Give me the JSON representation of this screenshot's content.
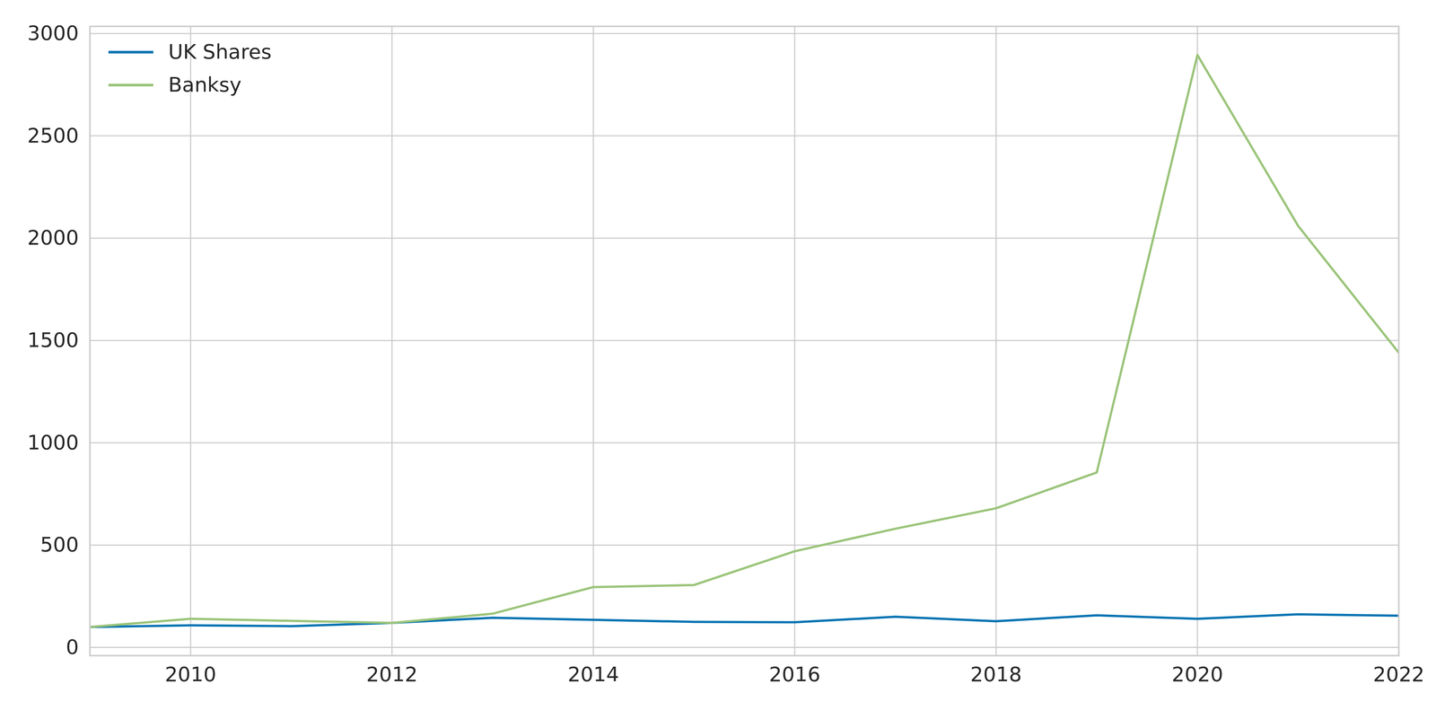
{
  "chart_data": {
    "type": "line",
    "x": [
      2009,
      2010,
      2011,
      2012,
      2013,
      2014,
      2015,
      2016,
      2017,
      2018,
      2019,
      2020,
      2021,
      2022
    ],
    "series": [
      {
        "name": "UK Shares",
        "color": "#0173b2",
        "values": [
          100,
          108,
          104,
          120,
          145,
          135,
          125,
          123,
          150,
          128,
          157,
          140,
          162,
          155
        ]
      },
      {
        "name": "Banksy",
        "color": "#9bc47a",
        "values": [
          100,
          140,
          130,
          120,
          165,
          295,
          305,
          470,
          580,
          680,
          855,
          2895,
          2060,
          1440
        ]
      }
    ],
    "xlim": [
      2009,
      2022
    ],
    "xticks": [
      2010,
      2012,
      2014,
      2016,
      2018,
      2020,
      2022
    ],
    "ylim": [
      -40,
      3035
    ],
    "yticks": [
      0,
      500,
      1000,
      1500,
      2000,
      2500,
      3000
    ],
    "grid": true,
    "legend": "upper left"
  }
}
